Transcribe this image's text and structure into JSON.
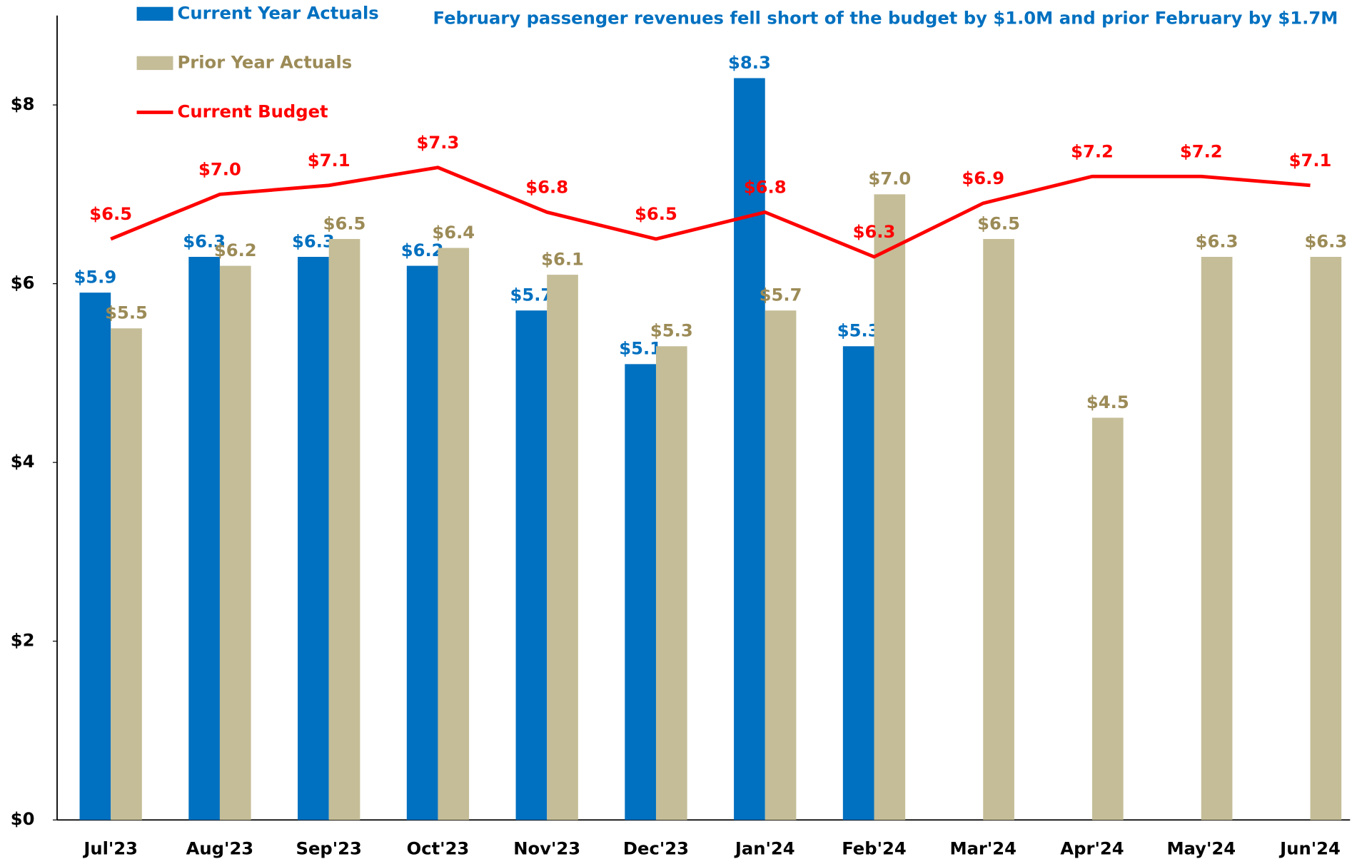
{
  "chart_data": {
    "type": "bar_line",
    "annotation": "February passenger revenues fell short of the budget by $1.0M and prior February by $1.7M",
    "categories": [
      "Jul'23",
      "Aug'23",
      "Sep'23",
      "Oct'23",
      "Nov'23",
      "Dec'23",
      "Jan'24",
      "Feb'24",
      "Mar'24",
      "Apr'24",
      "May'24",
      "Jun'24"
    ],
    "series": [
      {
        "name": "Current Year Actuals",
        "type": "bar",
        "color": "#0070c0",
        "values": [
          5.9,
          6.3,
          6.3,
          6.2,
          5.7,
          5.1,
          8.3,
          5.3,
          null,
          null,
          null,
          null
        ],
        "value_labels": [
          "$5.9",
          "$6.3",
          "$6.3",
          "$6.2",
          "$5.7",
          "$5.1",
          "$8.3",
          "$5.3",
          null,
          null,
          null,
          null
        ]
      },
      {
        "name": "Prior Year Actuals",
        "type": "bar",
        "color": "#c4bd97",
        "values": [
          5.5,
          6.2,
          6.5,
          6.4,
          6.1,
          5.3,
          5.7,
          7.0,
          6.5,
          4.5,
          6.3,
          6.3
        ],
        "value_labels": [
          "$5.5",
          "$6.2",
          "$6.5",
          "$6.4",
          "$6.1",
          "$5.3",
          "$5.7",
          "$7.0",
          "$6.5",
          "$4.5",
          "$6.3",
          "$6.3"
        ]
      },
      {
        "name": "Current Budget",
        "type": "line",
        "color": "#ff0000",
        "values": [
          6.5,
          7.0,
          7.1,
          7.3,
          6.8,
          6.5,
          6.8,
          6.3,
          6.9,
          7.2,
          7.2,
          7.1
        ],
        "value_labels": [
          "$6.5",
          "$7.0",
          "$7.1",
          "$7.3",
          "$6.8",
          "$6.5",
          "$6.8",
          "$6.3",
          "$6.9",
          "$7.2",
          "$7.2",
          "$7.1"
        ]
      }
    ],
    "ylim": [
      0,
      9
    ],
    "yticks": [
      {
        "value": 0,
        "label": "$0"
      },
      {
        "value": 2,
        "label": "$2"
      },
      {
        "value": 4,
        "label": "$4"
      },
      {
        "value": 6,
        "label": "$6"
      },
      {
        "value": 8,
        "label": "$8"
      }
    ]
  }
}
